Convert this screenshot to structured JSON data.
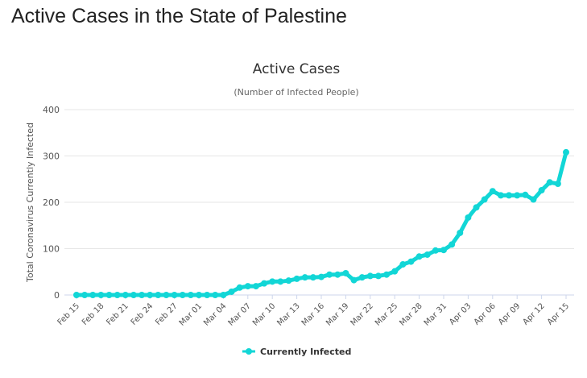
{
  "page": {
    "title": "Active Cases in the State of Palestine"
  },
  "chart_data": {
    "type": "line",
    "title": "Active Cases",
    "subtitle": "(Number of Infected People)",
    "xlabel": "",
    "ylabel": "Total Coronavirus Currently Infected",
    "ylim": [
      0,
      400
    ],
    "yticks": [
      0,
      100,
      200,
      300,
      400
    ],
    "grid": true,
    "legend_position": "bottom-center",
    "x": [
      "Feb 15",
      "Feb 16",
      "Feb 17",
      "Feb 18",
      "Feb 19",
      "Feb 20",
      "Feb 21",
      "Feb 22",
      "Feb 23",
      "Feb 24",
      "Feb 25",
      "Feb 26",
      "Feb 27",
      "Feb 28",
      "Feb 29",
      "Mar 01",
      "Mar 02",
      "Mar 03",
      "Mar 04",
      "Mar 05",
      "Mar 06",
      "Mar 07",
      "Mar 08",
      "Mar 09",
      "Mar 10",
      "Mar 11",
      "Mar 12",
      "Mar 13",
      "Mar 14",
      "Mar 15",
      "Mar 16",
      "Mar 17",
      "Mar 18",
      "Mar 19",
      "Mar 20",
      "Mar 21",
      "Mar 22",
      "Mar 23",
      "Mar 24",
      "Mar 25",
      "Mar 26",
      "Mar 27",
      "Mar 28",
      "Mar 29",
      "Mar 30",
      "Mar 31",
      "Apr 01",
      "Apr 02",
      "Apr 03",
      "Apr 04",
      "Apr 05",
      "Apr 06",
      "Apr 07",
      "Apr 08",
      "Apr 09",
      "Apr 10",
      "Apr 11",
      "Apr 12",
      "Apr 13",
      "Apr 14",
      "Apr 15"
    ],
    "x_tick_labels": [
      "Feb 15",
      "Feb 18",
      "Feb 21",
      "Feb 24",
      "Feb 27",
      "Mar 01",
      "Mar 04",
      "Mar 07",
      "Mar 10",
      "Mar 13",
      "Mar 16",
      "Mar 19",
      "Mar 22",
      "Mar 25",
      "Mar 28",
      "Mar 31",
      "Apr 03",
      "Apr 06",
      "Apr 09",
      "Apr 12",
      "Apr 15"
    ],
    "series": [
      {
        "name": "Currently Infected",
        "color": "#12d6d6",
        "values": [
          0,
          0,
          0,
          0,
          0,
          0,
          0,
          0,
          0,
          0,
          0,
          0,
          0,
          0,
          0,
          0,
          0,
          0,
          0,
          7,
          16,
          19,
          19,
          25,
          29,
          29,
          31,
          35,
          38,
          38,
          39,
          44,
          44,
          47,
          32,
          38,
          41,
          41,
          44,
          51,
          66,
          72,
          83,
          87,
          96,
          97,
          109,
          134,
          167,
          189,
          206,
          224,
          215,
          215,
          215,
          216,
          206,
          226,
          243,
          240,
          308
        ]
      }
    ]
  }
}
